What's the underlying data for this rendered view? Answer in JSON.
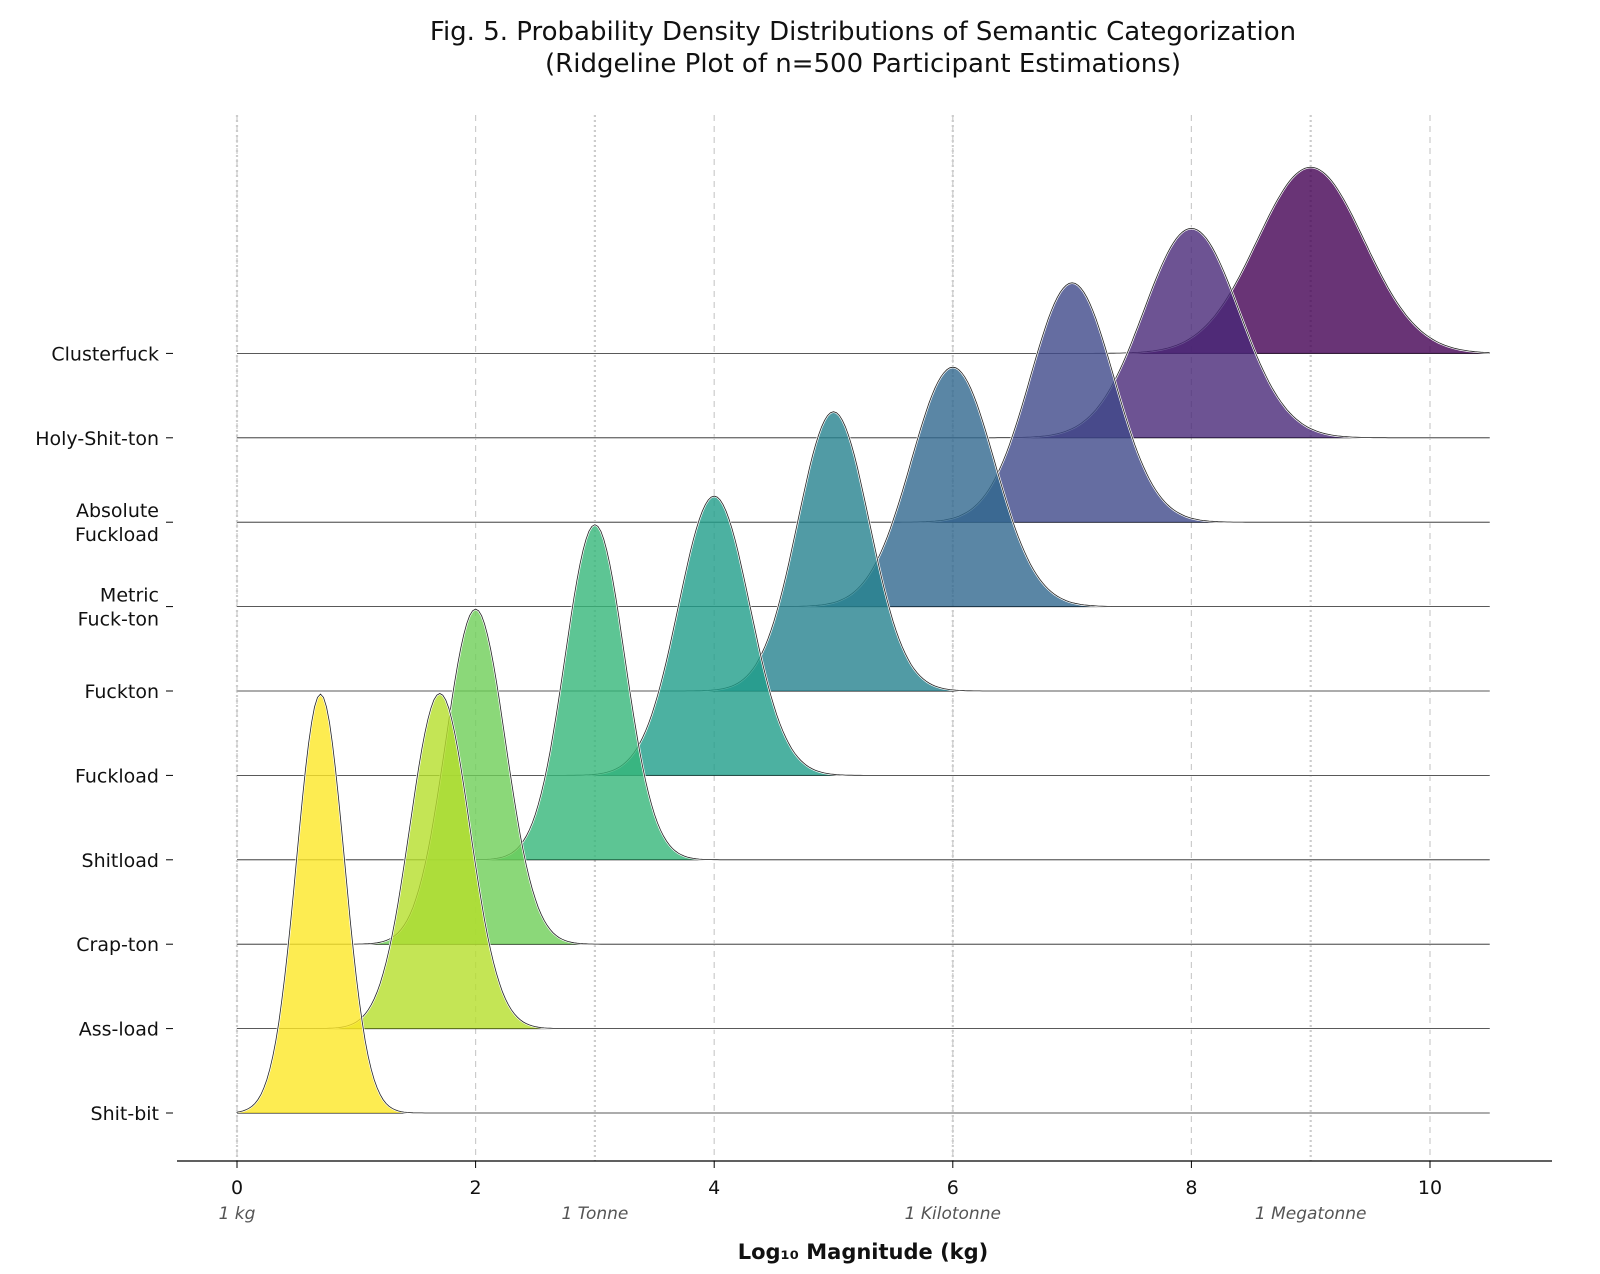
{
  "chart_data": {
    "type": "ridgeline",
    "title": "Fig. 5. Probability Density Distributions of Semantic Categorization",
    "subtitle": "(Ridgeline Plot of n=500 Participant Estimations)",
    "xlabel": "Log₁₀ Magnitude (kg)",
    "xlim": [
      -0.5,
      11
    ],
    "x_ticks": [
      0,
      2,
      4,
      6,
      8,
      10
    ],
    "grid": "vertical dashed at ticks",
    "reference_lines": [
      {
        "x": 0,
        "label": "1 kg"
      },
      {
        "x": 3,
        "label": "1 Tonne"
      },
      {
        "x": 6,
        "label": "1 Kilotonne"
      },
      {
        "x": 9,
        "label": "1 Megatonne"
      }
    ],
    "series": [
      {
        "name": "Shit-bit",
        "label_lines": [
          "Shit-bit"
        ],
        "mean": 0.7,
        "sd": 0.2,
        "color": "#fde725"
      },
      {
        "name": "Ass-load",
        "label_lines": [
          "Ass-load"
        ],
        "mean": 1.7,
        "sd": 0.25,
        "color": "#b5de2b"
      },
      {
        "name": "Crap-ton",
        "label_lines": [
          "Crap-ton"
        ],
        "mean": 2.0,
        "sd": 0.25,
        "color": "#6ece58"
      },
      {
        "name": "Shitload",
        "label_lines": [
          "Shitload"
        ],
        "mean": 3.0,
        "sd": 0.25,
        "color": "#35b779"
      },
      {
        "name": "Fuckload",
        "label_lines": [
          "Fuckload"
        ],
        "mean": 4.0,
        "sd": 0.3,
        "color": "#1f9e89"
      },
      {
        "name": "Fuckton",
        "label_lines": [
          "Fuckton"
        ],
        "mean": 5.0,
        "sd": 0.3,
        "color": "#26828e"
      },
      {
        "name": "Metric Fuck-ton",
        "label_lines": [
          "Metric",
          "Fuck-ton"
        ],
        "mean": 6.0,
        "sd": 0.35,
        "color": "#31688e"
      },
      {
        "name": "Absolute Fuckload",
        "label_lines": [
          "Absolute",
          "Fuckload"
        ],
        "mean": 7.0,
        "sd": 0.35,
        "color": "#3e4989"
      },
      {
        "name": "Holy-Shit-ton",
        "label_lines": [
          "Holy-Shit-ton"
        ],
        "mean": 8.0,
        "sd": 0.4,
        "color": "#482878"
      },
      {
        "name": "Clusterfuck",
        "label_lines": [
          "Clusterfuck"
        ],
        "mean": 9.0,
        "sd": 0.45,
        "color": "#440154"
      }
    ]
  }
}
